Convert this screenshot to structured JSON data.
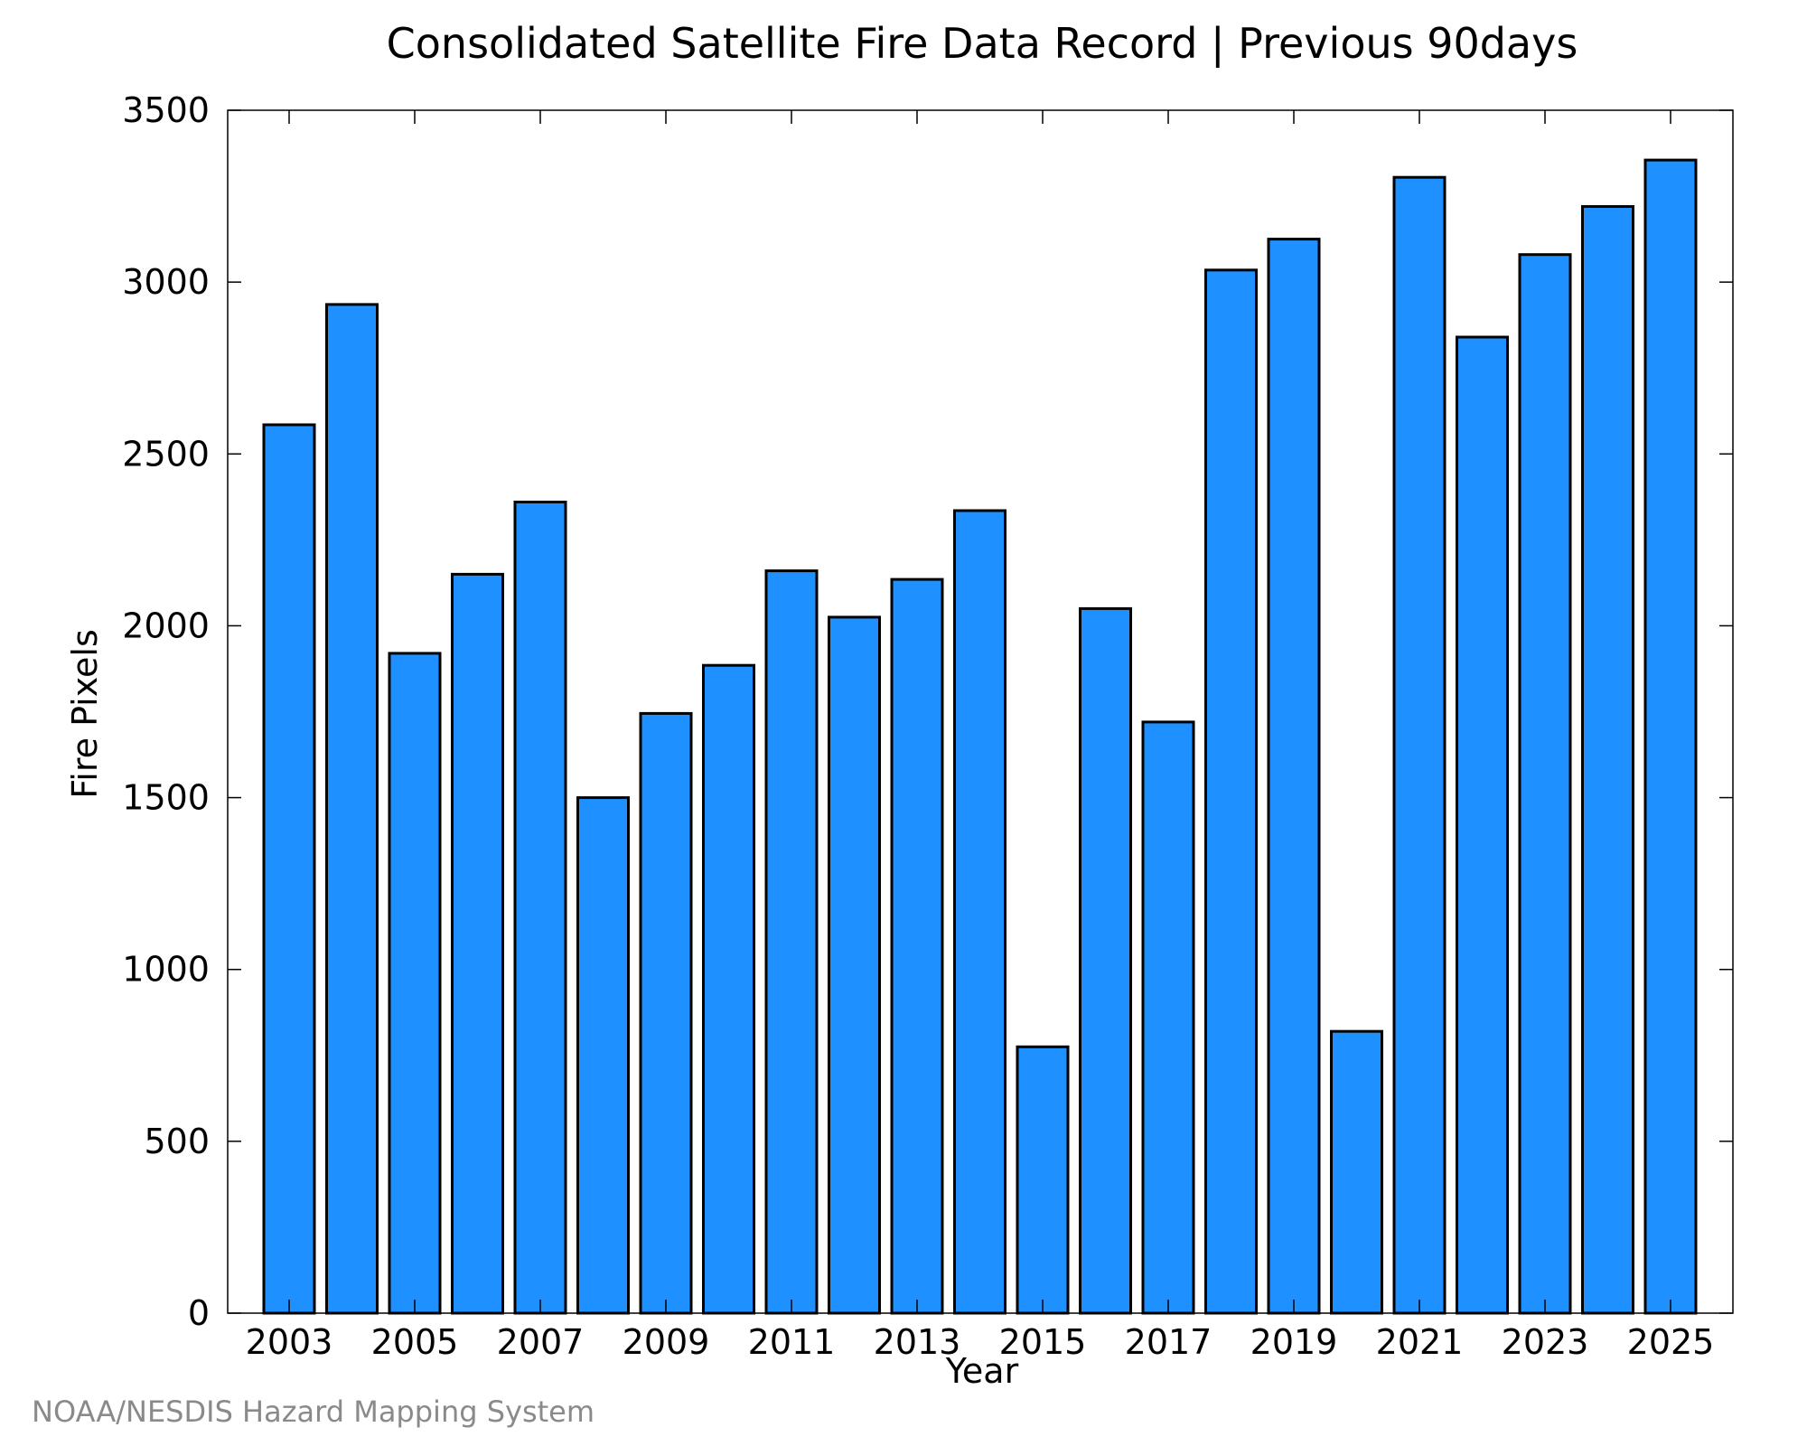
{
  "credit": "NOAA/NESDIS Hazard Mapping System",
  "colors": {
    "bar_fill": "#1e90ff",
    "bar_stroke": "#000000",
    "axis": "#000000",
    "credit_text": "#8a8a8a"
  },
  "chart_data": {
    "type": "bar",
    "title": "Consolidated Satellite Fire Data Record | Previous 90days",
    "xlabel": "Year",
    "ylabel": "Fire Pixels",
    "categories": [
      "2003",
      "2004",
      "2005",
      "2006",
      "2007",
      "2008",
      "2009",
      "2010",
      "2011",
      "2012",
      "2013",
      "2014",
      "2015",
      "2016",
      "2017",
      "2018",
      "2019",
      "2020",
      "2021",
      "2022",
      "2023",
      "2024",
      "2025"
    ],
    "values": [
      2585,
      2935,
      1920,
      2150,
      2360,
      1500,
      1745,
      1885,
      2160,
      2025,
      2135,
      2335,
      775,
      2050,
      1720,
      3035,
      3125,
      820,
      3305,
      2840,
      3080,
      3220,
      3355
    ],
    "x_tick_labels": [
      "2003",
      "2005",
      "2007",
      "2009",
      "2011",
      "2013",
      "2015",
      "2017",
      "2019",
      "2021",
      "2023",
      "2025"
    ],
    "yticks": [
      0,
      500,
      1000,
      1500,
      2000,
      2500,
      3000,
      3500
    ],
    "ytick_labels": [
      "0",
      "500",
      "1000",
      "1500",
      "2000",
      "2500",
      "3000",
      "3500"
    ],
    "ylim": [
      0,
      3500
    ],
    "grid": false,
    "legend": "none"
  }
}
